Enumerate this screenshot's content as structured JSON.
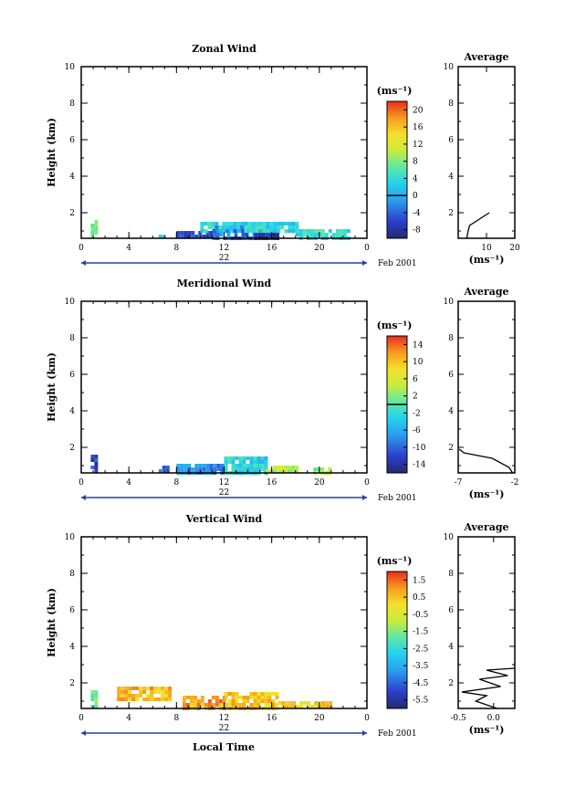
{
  "figure": {
    "date_label": "Feb 2001",
    "day_label": "22",
    "xlabel": "Local Time",
    "ylabel": "Height (km)",
    "unit_label": "(ms⁻¹)",
    "avg_title": "Average",
    "avg_unit": "(ms⁻¹)"
  },
  "chart_data": [
    {
      "type": "heatmap",
      "title": "Zonal Wind",
      "xlabel": "",
      "ylabel": "Height (km)",
      "xlim": [
        0,
        24
      ],
      "ylim": [
        0.6,
        10
      ],
      "x_ticks": [
        "0",
        "4",
        "8",
        "12",
        "16",
        "20",
        "0"
      ],
      "y_ticks": [
        "2",
        "4",
        "6",
        "8",
        "10"
      ],
      "colorbar": {
        "ticks": [
          "-8",
          "-4",
          "0",
          "4",
          "8",
          "12",
          "16",
          "20"
        ],
        "min": -10,
        "max": 22,
        "zero_line": 0
      },
      "data_patches": [
        {
          "x": [
            0.8,
            1.4
          ],
          "y": [
            0.6,
            1.6
          ],
          "value": 7
        },
        {
          "x": [
            6.5,
            7.0
          ],
          "y": [
            0.6,
            0.8
          ],
          "value": 3
        },
        {
          "x": [
            8.0,
            11.0
          ],
          "y": [
            0.6,
            1.0
          ],
          "value": -6
        },
        {
          "x": [
            11.0,
            14.5
          ],
          "y": [
            0.6,
            1.3
          ],
          "value": -3
        },
        {
          "x": [
            14.5,
            16.5
          ],
          "y": [
            0.6,
            1.1
          ],
          "value": -8
        },
        {
          "x": [
            10.0,
            18.0
          ],
          "y": [
            1.0,
            1.5
          ],
          "value": 3
        },
        {
          "x": [
            18.0,
            22.5
          ],
          "y": [
            0.6,
            1.1
          ],
          "value": 4
        }
      ],
      "average": {
        "xlim": [
          0,
          20
        ],
        "x_ticks": [
          "10",
          "20"
        ],
        "y_ticks": [
          "2",
          "4",
          "6",
          "8",
          "10"
        ],
        "profile": [
          {
            "v": 3,
            "h": 0.6
          },
          {
            "v": 3.5,
            "h": 1.0
          },
          {
            "v": 4,
            "h": 1.3
          },
          {
            "v": 6,
            "h": 1.5
          },
          {
            "v": 8,
            "h": 1.7
          },
          {
            "v": 11,
            "h": 2.0
          }
        ]
      }
    },
    {
      "type": "heatmap",
      "title": "Meridional Wind",
      "xlabel": "",
      "ylabel": "Height (km)",
      "xlim": [
        0,
        24
      ],
      "ylim": [
        0.6,
        10
      ],
      "x_ticks": [
        "0",
        "4",
        "8",
        "12",
        "16",
        "20",
        "0"
      ],
      "y_ticks": [
        "2",
        "4",
        "6",
        "8",
        "10"
      ],
      "colorbar": {
        "ticks": [
          "-14",
          "-10",
          "-6",
          "-2",
          "2",
          "6",
          "10",
          "14"
        ],
        "min": -16,
        "max": 16,
        "zero_line": 0
      },
      "data_patches": [
        {
          "x": [
            0.8,
            1.4
          ],
          "y": [
            0.6,
            1.6
          ],
          "value": -12
        },
        {
          "x": [
            6.5,
            7.2
          ],
          "y": [
            0.6,
            1.0
          ],
          "value": -10
        },
        {
          "x": [
            8.0,
            12.0
          ],
          "y": [
            0.6,
            1.1
          ],
          "value": -8
        },
        {
          "x": [
            12.0,
            15.5
          ],
          "y": [
            0.6,
            1.5
          ],
          "value": -3
        },
        {
          "x": [
            15.5,
            18.0
          ],
          "y": [
            0.6,
            1.0
          ],
          "value": 4
        },
        {
          "x": [
            19.5,
            21.0
          ],
          "y": [
            0.6,
            0.9
          ],
          "value": 3
        }
      ],
      "average": {
        "xlim": [
          -7,
          -2
        ],
        "x_ticks": [
          "-7",
          "-2"
        ],
        "y_ticks": [
          "2",
          "4",
          "6",
          "8",
          "10"
        ],
        "profile": [
          {
            "v": -2.2,
            "h": 0.6
          },
          {
            "v": -2.5,
            "h": 0.9
          },
          {
            "v": -4.0,
            "h": 1.4
          },
          {
            "v": -6.5,
            "h": 1.7
          },
          {
            "v": -6.9,
            "h": 1.9
          }
        ]
      }
    },
    {
      "type": "heatmap",
      "title": "Vertical Wind",
      "xlabel": "Local Time",
      "ylabel": "Height (km)",
      "xlim": [
        0,
        24
      ],
      "ylim": [
        0.6,
        10
      ],
      "x_ticks": [
        "0",
        "4",
        "8",
        "12",
        "16",
        "20",
        "0"
      ],
      "y_ticks": [
        "2",
        "4",
        "6",
        "8",
        "10"
      ],
      "colorbar": {
        "ticks": [
          "-5.5",
          "-4.5",
          "-3.5",
          "-2.5",
          "-1.5",
          "-0.5",
          "0.5",
          "1.5"
        ],
        "min": -6,
        "max": 2
      },
      "data_patches": [
        {
          "x": [
            0.8,
            1.4
          ],
          "y": [
            0.6,
            1.6
          ],
          "value": -1.5
        },
        {
          "x": [
            3.0,
            7.5
          ],
          "y": [
            1.0,
            1.8
          ],
          "value": 0.6
        },
        {
          "x": [
            8.5,
            12.0
          ],
          "y": [
            0.6,
            1.3
          ],
          "value": 0.9
        },
        {
          "x": [
            12.0,
            16.5
          ],
          "y": [
            0.6,
            1.5
          ],
          "value": 0.4
        },
        {
          "x": [
            16.5,
            21.0
          ],
          "y": [
            0.6,
            1.0
          ],
          "value": 0.2
        }
      ],
      "average": {
        "xlim": [
          -0.5,
          0.3
        ],
        "x_ticks": [
          "-0.5",
          "0.0"
        ],
        "y_ticks": [
          "2",
          "4",
          "6",
          "8",
          "10"
        ],
        "profile": [
          {
            "v": 0.05,
            "h": 0.6
          },
          {
            "v": -0.25,
            "h": 1.0
          },
          {
            "v": -0.1,
            "h": 1.3
          },
          {
            "v": -0.45,
            "h": 1.5
          },
          {
            "v": 0.1,
            "h": 1.8
          },
          {
            "v": -0.2,
            "h": 2.2
          },
          {
            "v": 0.2,
            "h": 2.4
          },
          {
            "v": -0.1,
            "h": 2.7
          },
          {
            "v": 0.3,
            "h": 2.8
          }
        ]
      }
    }
  ]
}
